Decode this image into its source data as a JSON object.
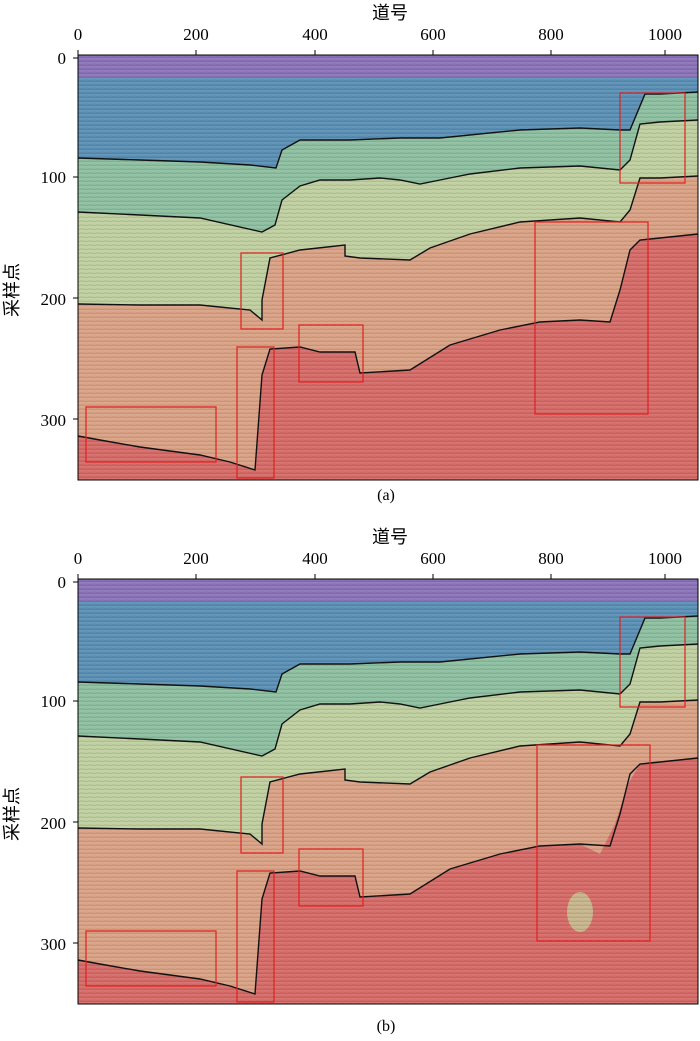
{
  "figure": {
    "panels": [
      {
        "caption": "(a)",
        "x_axis_title": "道号",
        "y_axis_title": "采样点",
        "x_ticks": [
          "0",
          "200",
          "400",
          "600",
          "800",
          "1000"
        ],
        "y_ticks": [
          "0",
          "100",
          "200",
          "300"
        ]
      },
      {
        "caption": "(b)",
        "x_axis_title": "道号",
        "y_axis_title": "采样点",
        "x_ticks": [
          "0",
          "200",
          "400",
          "600",
          "800",
          "1000"
        ],
        "y_ticks": [
          "0",
          "100",
          "200",
          "300"
        ]
      }
    ],
    "layer_colors": {
      "water": "#8a72b8",
      "layer1": "#5a8fb5",
      "layer2": "#8dbfa0",
      "layer3": "#bfcf9f",
      "layer4": "#d9a184",
      "layer5": "#d56a66",
      "highlight_box": "#e02020"
    },
    "x_range": [
      0,
      1030
    ],
    "y_range": [
      0,
      350
    ]
  }
}
